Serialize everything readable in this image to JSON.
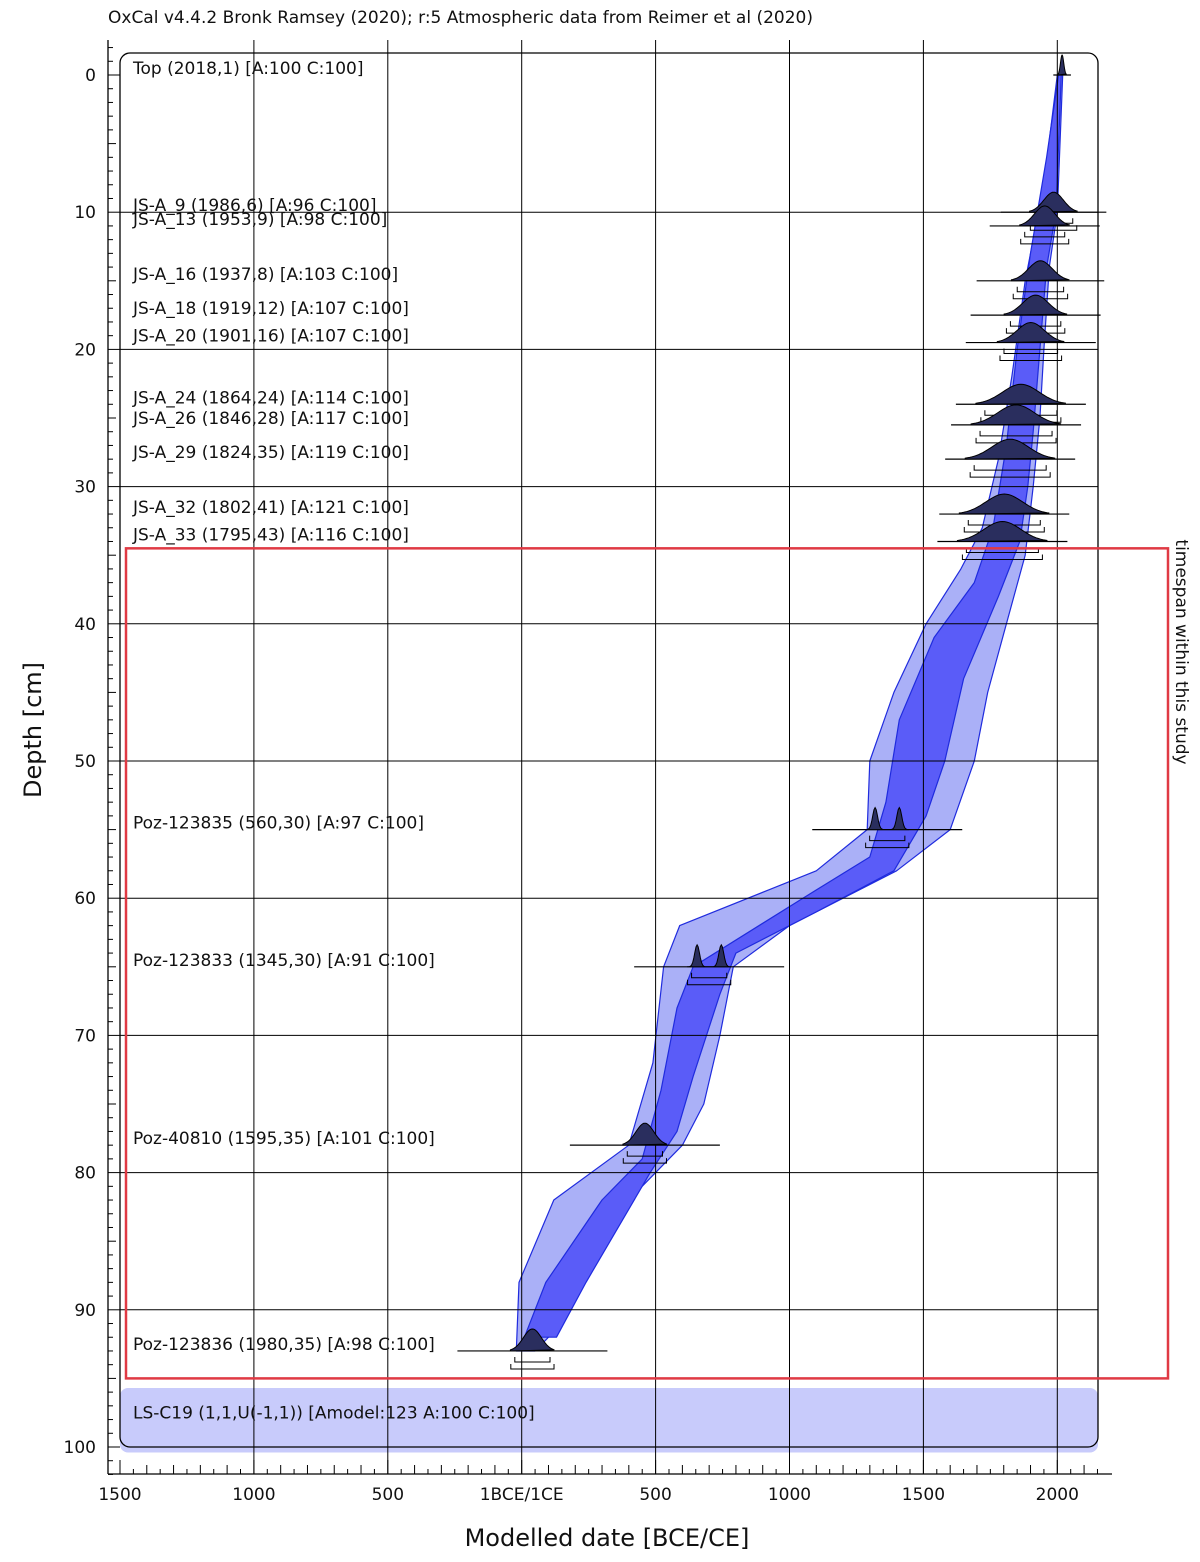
{
  "header": "OxCal v4.4.2 Bronk Ramsey (2020); r:5 Atmospheric data from Reimer et al (2020)",
  "highlight_label": "timespan within this study",
  "colors": {
    "envelope_outer": "#aab0f7",
    "envelope_inner": "#5a5cf8",
    "envelope_stroke": "#1f2bde",
    "distribution": "#2a2e5e",
    "highlight_box": "#e03a44",
    "boundary_band": "#c8cbfb",
    "grid": "#000000"
  },
  "chart_data": {
    "type": "scatter",
    "title": "",
    "xlabel": "Modelled date [BCE/CE]",
    "ylabel": "Depth [cm]",
    "xlim": [
      -1500,
      2150
    ],
    "ylim": [
      102,
      -2
    ],
    "x_ticks": [
      {
        "value": -1500,
        "label": "1500"
      },
      {
        "value": -1000,
        "label": "1000"
      },
      {
        "value": -500,
        "label": "500"
      },
      {
        "value": 0,
        "label": "1BCE/1CE"
      },
      {
        "value": 500,
        "label": "500"
      },
      {
        "value": 1000,
        "label": "1000"
      },
      {
        "value": 1500,
        "label": "1500"
      },
      {
        "value": 2000,
        "label": "2000"
      }
    ],
    "y_ticks": [
      0,
      10,
      20,
      30,
      40,
      50,
      60,
      70,
      80,
      90,
      100
    ],
    "grid": true,
    "samples": [
      {
        "label": "Top (2018,1) [A:100 C:100]",
        "depth": 0,
        "date": 2018
      },
      {
        "label": "JS-A_9 (1986,6) [A:96 C:100]",
        "depth": 10,
        "date": 1986
      },
      {
        "label": "JS-A_13 (1953,9) [A:98 C:100]",
        "depth": 11,
        "date": 1953
      },
      {
        "label": "JS-A_16 (1937,8) [A:103 C:100]",
        "depth": 15,
        "date": 1937
      },
      {
        "label": "JS-A_18 (1919,12) [A:107 C:100]",
        "depth": 17.5,
        "date": 1919
      },
      {
        "label": "JS-A_20 (1901,16) [A:107 C:100]",
        "depth": 19.5,
        "date": 1901
      },
      {
        "label": "JS-A_24 (1864,24) [A:114 C:100]",
        "depth": 24,
        "date": 1864
      },
      {
        "label": "JS-A_26 (1846,28) [A:117 C:100]",
        "depth": 25.5,
        "date": 1846
      },
      {
        "label": "JS-A_29 (1824,35) [A:119 C:100]",
        "depth": 28,
        "date": 1824
      },
      {
        "label": "JS-A_32 (1802,41) [A:121 C:100]",
        "depth": 32,
        "date": 1802
      },
      {
        "label": "JS-A_33 (1795,43) [A:116 C:100]",
        "depth": 34,
        "date": 1795
      },
      {
        "label": "Poz-123835 (560,30) [A:97 C:100]",
        "depth": 55,
        "date": 1365
      },
      {
        "label": "Poz-123833 (1345,30) [A:91 C:100]",
        "depth": 65,
        "date": 700
      },
      {
        "label": "Poz-40810 (1595,35) [A:101 C:100]",
        "depth": 78,
        "date": 460
      },
      {
        "label": "Poz-123836 (1980,35) [A:98 C:100]",
        "depth": 93,
        "date": 40
      },
      {
        "label": "LS-C19 (1,1,U(-1,1)) [Amodel:123 A:100 C:100]",
        "depth": 98,
        "date": null
      }
    ],
    "envelope_95": [
      [
        2020,
        0
      ],
      [
        2000,
        10
      ],
      [
        1970,
        14
      ],
      [
        1950,
        20
      ],
      [
        1935,
        25
      ],
      [
        1910,
        30
      ],
      [
        1880,
        35
      ],
      [
        1810,
        40
      ],
      [
        1740,
        45
      ],
      [
        1690,
        50
      ],
      [
        1600,
        55
      ],
      [
        1400,
        58
      ],
      [
        1000,
        62
      ],
      [
        790,
        65
      ],
      [
        740,
        70
      ],
      [
        680,
        75
      ],
      [
        600,
        78
      ],
      [
        400,
        82
      ],
      [
        220,
        88
      ],
      [
        100,
        92
      ],
      [
        50,
        93
      ],
      [
        -20,
        93
      ],
      [
        -10,
        88
      ],
      [
        120,
        82
      ],
      [
        400,
        78
      ],
      [
        490,
        72
      ],
      [
        530,
        65
      ],
      [
        590,
        62
      ],
      [
        1100,
        58
      ],
      [
        1290,
        55
      ],
      [
        1300,
        50
      ],
      [
        1390,
        45
      ],
      [
        1510,
        40
      ],
      [
        1640,
        36
      ],
      [
        1720,
        33
      ],
      [
        1780,
        28
      ],
      [
        1830,
        22
      ],
      [
        1880,
        15
      ],
      [
        1950,
        8
      ],
      [
        2000,
        0
      ]
    ],
    "envelope_68": [
      [
        2015,
        0
      ],
      [
        1995,
        10
      ],
      [
        1960,
        14
      ],
      [
        1935,
        20
      ],
      [
        1910,
        26
      ],
      [
        1890,
        30
      ],
      [
        1860,
        34
      ],
      [
        1780,
        38
      ],
      [
        1650,
        44
      ],
      [
        1580,
        50
      ],
      [
        1510,
        54
      ],
      [
        1390,
        58
      ],
      [
        1100,
        61
      ],
      [
        800,
        64
      ],
      [
        740,
        67
      ],
      [
        640,
        73
      ],
      [
        580,
        77
      ],
      [
        480,
        80
      ],
      [
        240,
        88
      ],
      [
        130,
        92
      ],
      [
        10,
        92
      ],
      [
        90,
        88
      ],
      [
        300,
        82
      ],
      [
        450,
        79
      ],
      [
        520,
        74
      ],
      [
        580,
        68
      ],
      [
        640,
        65
      ],
      [
        1050,
        60
      ],
      [
        1300,
        57
      ],
      [
        1360,
        53
      ],
      [
        1410,
        47
      ],
      [
        1540,
        41
      ],
      [
        1690,
        37
      ],
      [
        1760,
        33
      ],
      [
        1810,
        27
      ],
      [
        1850,
        20
      ],
      [
        1900,
        13
      ],
      [
        1960,
        6
      ],
      [
        2005,
        0
      ]
    ],
    "highlight_depth_range": [
      34.5,
      95
    ],
    "boundary_band_depth_range": [
      95.7,
      100.4
    ]
  }
}
